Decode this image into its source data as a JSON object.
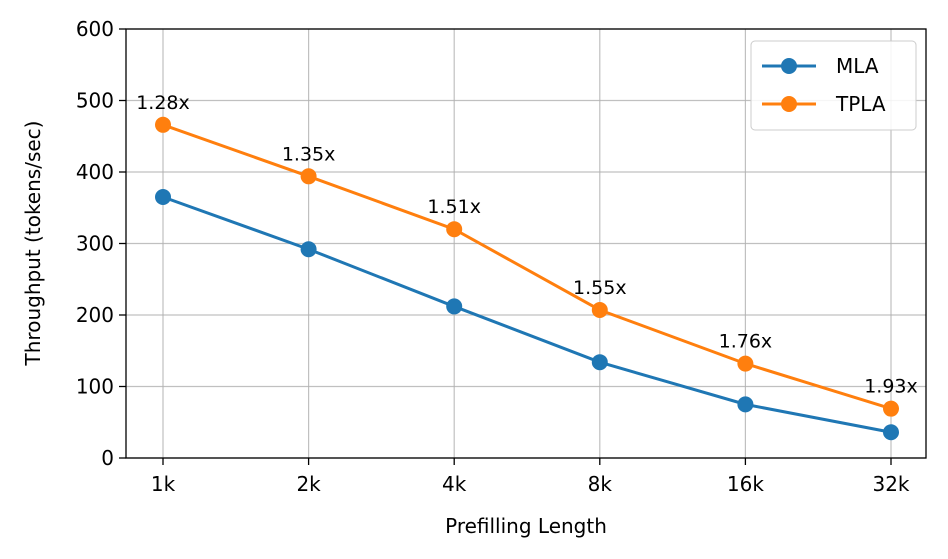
{
  "chart_data": {
    "type": "line",
    "title": "",
    "xlabel": "Prefilling Length",
    "ylabel": "Throughput (tokens/sec)",
    "categories": [
      "1k",
      "2k",
      "4k",
      "8k",
      "16k",
      "32k"
    ],
    "ylim": [
      0,
      600
    ],
    "yticks": [
      "0",
      "100",
      "200",
      "300",
      "400",
      "500",
      "600"
    ],
    "grid": true,
    "legend_position": "top-right",
    "series": [
      {
        "name": "MLA",
        "color": "#1f77b4",
        "marker": "circle",
        "values": [
          365,
          292,
          212,
          134,
          75,
          36
        ]
      },
      {
        "name": "TPLA",
        "color": "#ff7f0e",
        "marker": "circle",
        "values": [
          466,
          394,
          320,
          207,
          132,
          69
        ]
      }
    ],
    "annotations": [
      "1.28x",
      "1.35x",
      "1.51x",
      "1.55x",
      "1.76x",
      "1.93x"
    ],
    "annotation_series": "TPLA"
  }
}
